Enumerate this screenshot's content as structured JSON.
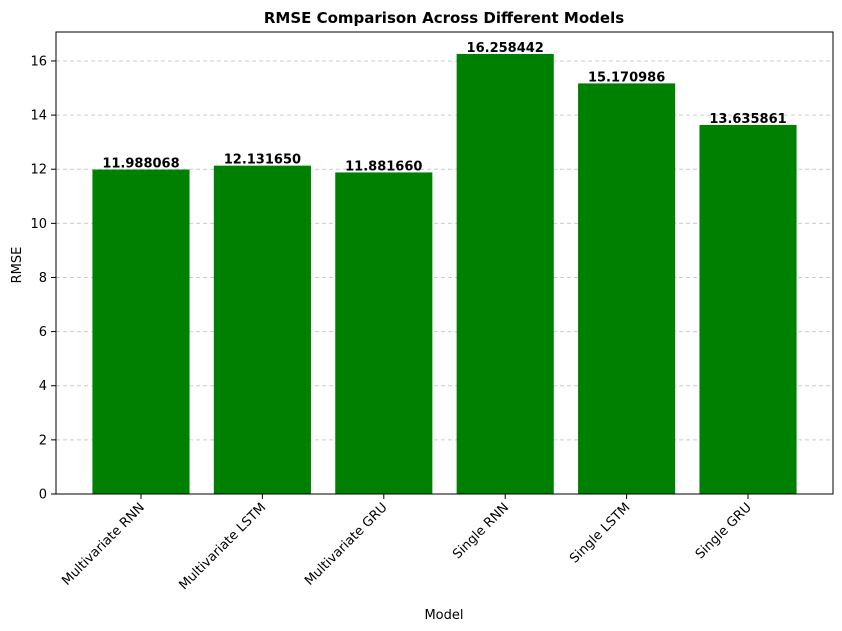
{
  "chart_data": {
    "type": "bar",
    "title": "RMSE Comparison Across Different Models",
    "xlabel": "Model",
    "ylabel": "RMSE",
    "categories": [
      "Multivariate RNN",
      "Multivariate LSTM",
      "Multivariate GRU",
      "Single RNN",
      "Single LSTM",
      "Single GRU"
    ],
    "values": [
      11.988068,
      12.13165,
      11.88166,
      16.258442,
      15.170986,
      13.635861
    ],
    "data_labels": [
      "11.988068",
      "12.131650",
      "11.881660",
      "16.258442",
      "15.170986",
      "13.635861"
    ],
    "ylim": [
      0,
      17.07
    ],
    "yticks": [
      0,
      2,
      4,
      6,
      8,
      10,
      12,
      14,
      16
    ],
    "grid": "y-dashed",
    "bar_color": "#008000",
    "x_tick_rotation": 45
  }
}
